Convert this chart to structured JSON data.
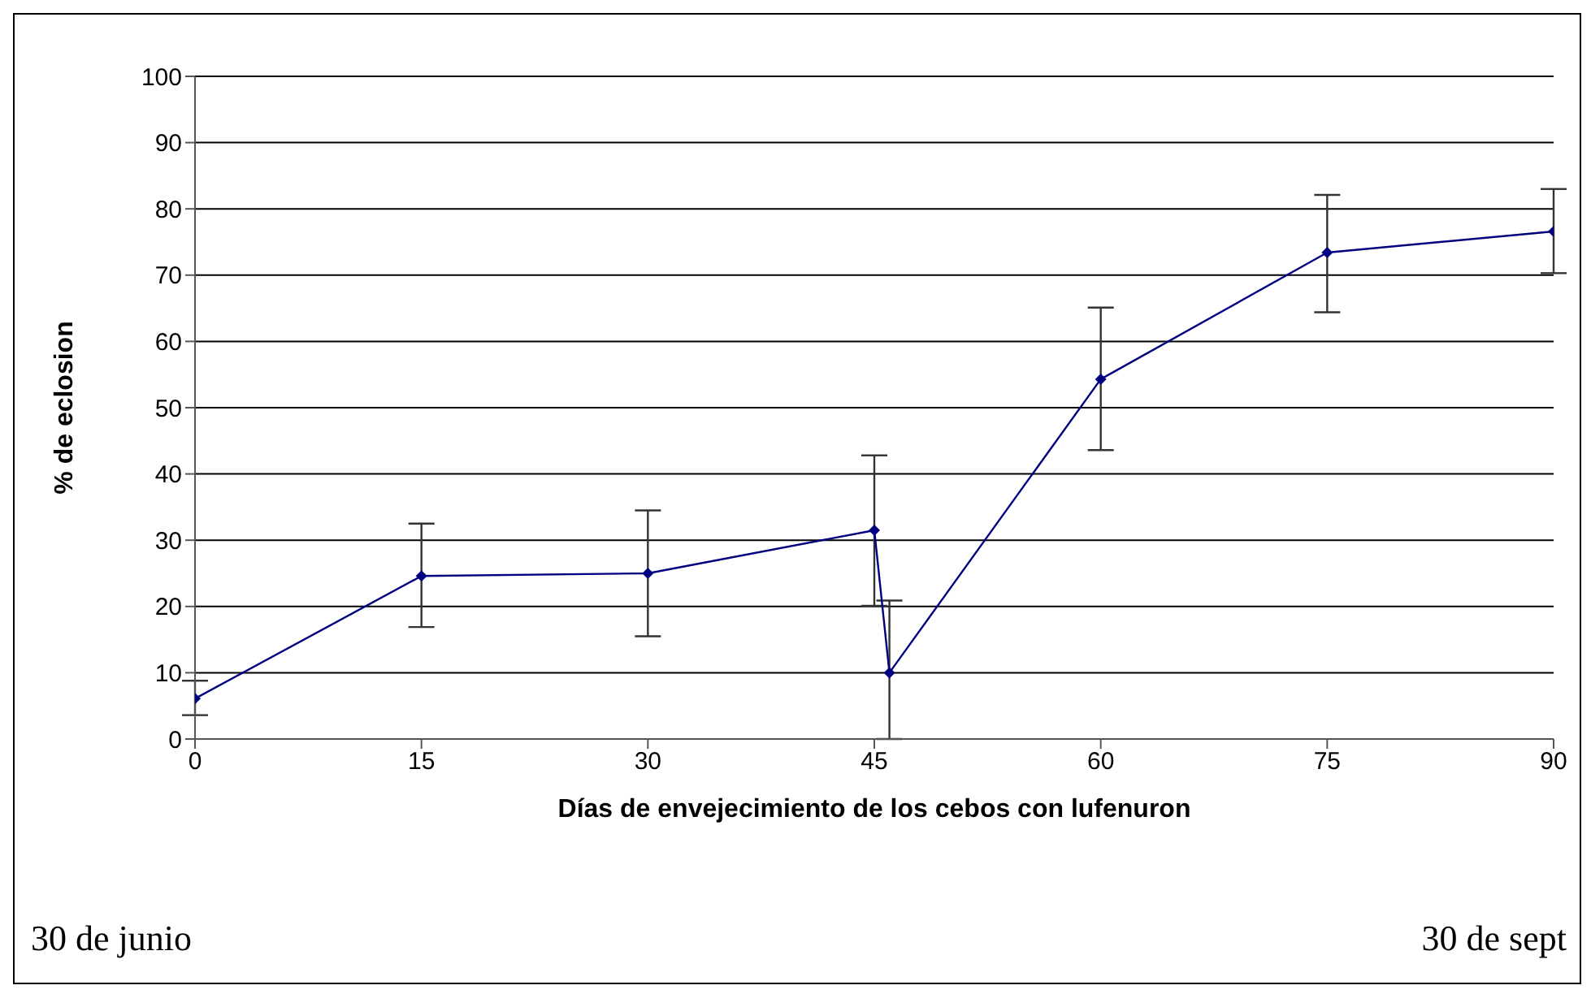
{
  "chart_data": {
    "type": "line",
    "xlabel": "Días de envejecimiento de los cebos con lufenuron",
    "ylabel": "% de eclosion",
    "x": [
      0,
      15,
      30,
      45,
      46,
      60,
      75,
      90
    ],
    "series": [
      {
        "color": "#000080",
        "values": [
          6.1,
          24.6,
          25.0,
          31.5,
          10.0,
          54.3,
          73.4,
          76.6
        ],
        "errors": [
          [
            3.6,
            8.8
          ],
          [
            16.9,
            32.5
          ],
          [
            15.5,
            34.5
          ],
          [
            20.1,
            42.8
          ],
          [
            0,
            20.9
          ],
          [
            43.6,
            65.1
          ],
          [
            64.4,
            82.1
          ],
          [
            70.3,
            83.0
          ]
        ]
      }
    ],
    "xlim": [
      0,
      90
    ],
    "xticks": [
      0,
      15,
      30,
      45,
      60,
      75,
      90
    ],
    "ylim": [
      0,
      100
    ],
    "yticks": [
      0,
      10,
      20,
      30,
      40,
      50,
      60,
      70,
      80,
      90,
      100
    ],
    "grid": "y",
    "legend": false,
    "marker": "diamond",
    "line_style": "solid",
    "annotations": [
      "30 de junio",
      "30 de sept"
    ]
  }
}
